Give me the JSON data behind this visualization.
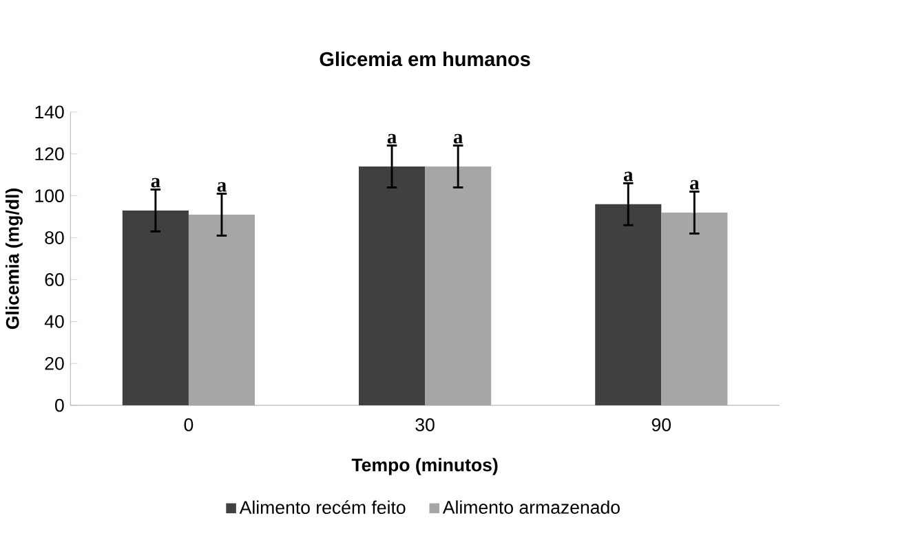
{
  "chart_data": {
    "type": "bar",
    "title": "Glicemia em humanos",
    "xlabel": "Tempo (minutos)",
    "ylabel": "Glicemia (mg/dl)",
    "categories": [
      "0",
      "30",
      "90"
    ],
    "series": [
      {
        "name": "Alimento recém feito",
        "color": "#404040",
        "values": [
          93,
          114,
          96
        ],
        "errors": [
          10,
          10,
          10
        ]
      },
      {
        "name": "Alimento armazenado",
        "color": "#a6a6a6",
        "values": [
          91,
          114,
          92
        ],
        "errors": [
          10,
          10,
          10
        ]
      }
    ],
    "ylim": [
      0,
      140
    ],
    "yticks": [
      0,
      20,
      40,
      60,
      80,
      100,
      120,
      140
    ],
    "grid": false,
    "legend": "bottom",
    "annotations": [
      {
        "text": "a",
        "x": "0",
        "y": 93
      },
      {
        "text": "a",
        "x": "0",
        "y": 91
      },
      {
        "text": "a",
        "x": "30",
        "y": 114
      },
      {
        "text": "a",
        "x": "30",
        "y": 114
      },
      {
        "text": "a",
        "x": "90",
        "y": 96
      },
      {
        "text": "a",
        "x": "90",
        "y": 92
      }
    ]
  }
}
